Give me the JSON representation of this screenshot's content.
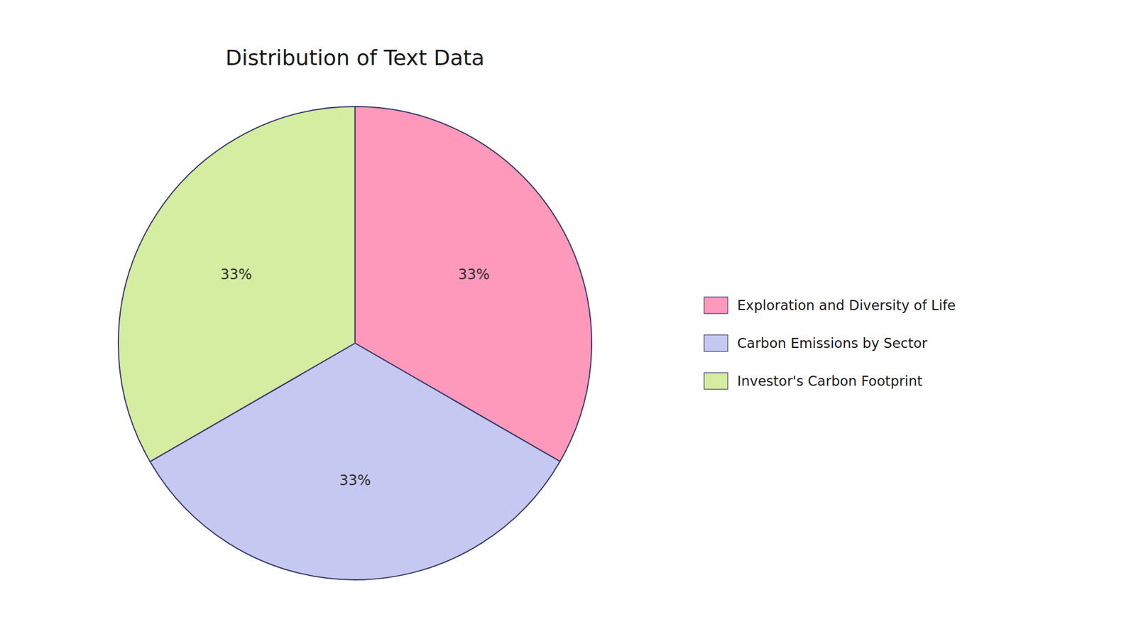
{
  "chart_data": {
    "type": "pie",
    "title": "Distribution of Text Data",
    "categories": [
      "Exploration and Diversity of Life",
      "Carbon Emissions by Sector",
      "Investor's Carbon Footprint"
    ],
    "values": [
      33.33,
      33.33,
      33.34
    ],
    "value_labels": [
      "33%",
      "33%",
      "33%"
    ],
    "colors": [
      "#FF99BB",
      "#C5C8F0",
      "#D4EDA0"
    ],
    "data_labels": true,
    "legend": "right"
  }
}
